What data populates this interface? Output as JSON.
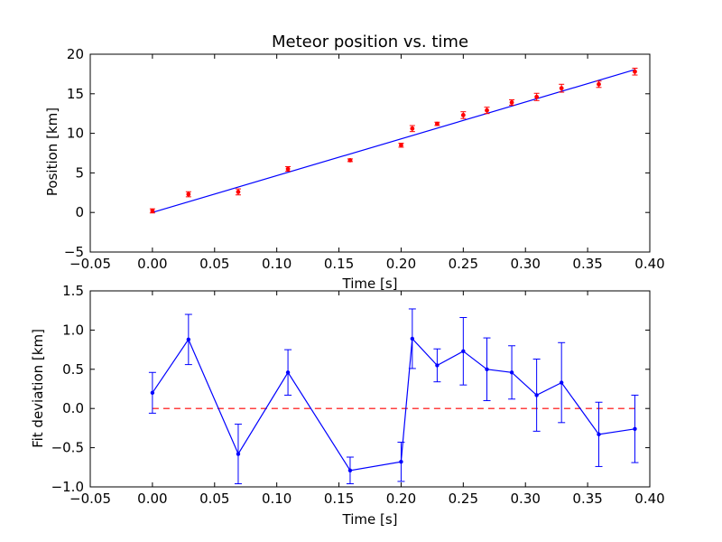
{
  "chart_data": [
    {
      "type": "scatter",
      "title": "Meteor position vs. time",
      "xlabel": "Time [s]",
      "ylabel": "Position [km]",
      "xlim": [
        -0.05,
        0.4
      ],
      "ylim": [
        -5,
        20
      ],
      "xticks": [
        "−0.05",
        "0.00",
        "0.05",
        "0.10",
        "0.15",
        "0.20",
        "0.25",
        "0.30",
        "0.35",
        "0.40"
      ],
      "yticks": [
        "−5",
        "0",
        "5",
        "10",
        "15",
        "20"
      ],
      "grid": false,
      "colors": {
        "points": "#ff0000",
        "fit": "#0000ff"
      },
      "series": [
        {
          "kind": "points-with-errorbars",
          "x": [
            0.0,
            0.029,
            0.069,
            0.109,
            0.159,
            0.2,
            0.209,
            0.229,
            0.25,
            0.269,
            0.289,
            0.309,
            0.329,
            0.359,
            0.388
          ],
          "y": [
            0.2,
            2.3,
            2.6,
            5.5,
            6.6,
            8.5,
            10.6,
            11.2,
            12.3,
            12.9,
            13.9,
            14.6,
            15.7,
            16.2,
            17.8
          ],
          "yerr": [
            0.26,
            0.32,
            0.38,
            0.29,
            0.17,
            0.25,
            0.38,
            0.21,
            0.43,
            0.4,
            0.34,
            0.46,
            0.5,
            0.4,
            0.43
          ]
        },
        {
          "kind": "fit-line",
          "x": [
            0.0,
            0.388
          ],
          "y": [
            0.0,
            18.05
          ]
        }
      ]
    },
    {
      "type": "line",
      "title": "",
      "xlabel": "Time [s]",
      "ylabel": "Fit deviation [km]",
      "xlim": [
        -0.05,
        0.4
      ],
      "ylim": [
        -1.0,
        1.5
      ],
      "xticks": [
        "−0.05",
        "0.00",
        "0.05",
        "0.10",
        "0.15",
        "0.20",
        "0.25",
        "0.30",
        "0.35",
        "0.40"
      ],
      "yticks": [
        "−1.0",
        "−0.5",
        "0.0",
        "0.5",
        "1.0",
        "1.5"
      ],
      "grid": false,
      "colors": {
        "line": "#0000ff",
        "reference": "#ff0000"
      },
      "reference_line": 0.0,
      "series": [
        {
          "kind": "line-with-errorbars",
          "x": [
            0.0,
            0.029,
            0.069,
            0.109,
            0.159,
            0.2,
            0.209,
            0.229,
            0.25,
            0.269,
            0.289,
            0.309,
            0.329,
            0.359,
            0.388
          ],
          "y": [
            0.2,
            0.88,
            -0.58,
            0.46,
            -0.79,
            -0.68,
            0.89,
            0.55,
            0.73,
            0.5,
            0.46,
            0.17,
            0.33,
            -0.33,
            -0.26
          ],
          "yerr": [
            0.26,
            0.32,
            0.38,
            0.29,
            0.17,
            0.25,
            0.38,
            0.21,
            0.43,
            0.4,
            0.34,
            0.46,
            0.51,
            0.41,
            0.43
          ]
        }
      ]
    }
  ]
}
